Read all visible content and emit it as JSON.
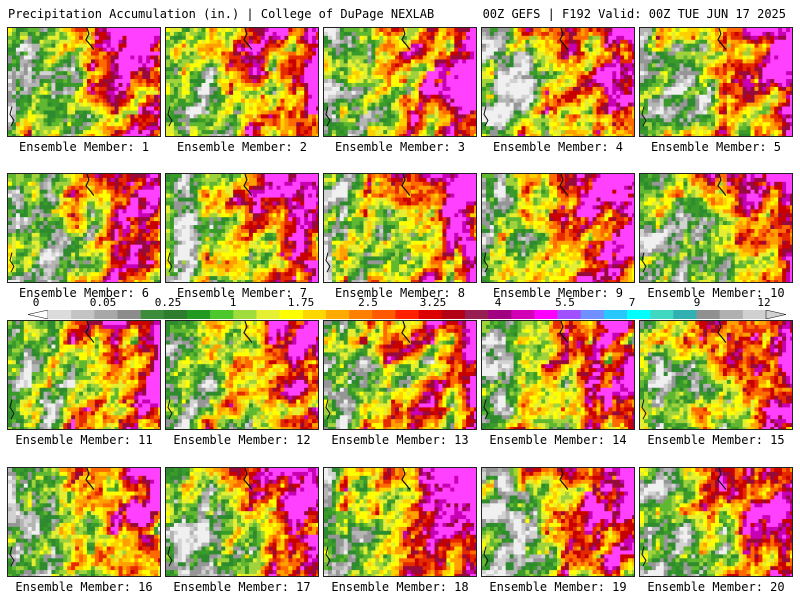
{
  "header": {
    "left": "Precipitation Accumulation (in.) | College of DuPage NEXLAB",
    "right": "00Z GEFS | F192 Valid: 00Z TUE JUN 17 2025"
  },
  "panels": [
    {
      "label": "Ensemble Member: 1"
    },
    {
      "label": "Ensemble Member: 2"
    },
    {
      "label": "Ensemble Member: 3"
    },
    {
      "label": "Ensemble Member: 4"
    },
    {
      "label": "Ensemble Member: 5"
    },
    {
      "label": "Ensemble Member: 6"
    },
    {
      "label": "Ensemble Member: 7"
    },
    {
      "label": "Ensemble Member: 8"
    },
    {
      "label": "Ensemble Member: 9"
    },
    {
      "label": "Ensemble Member: 10"
    },
    {
      "label": "Ensemble Member: 11"
    },
    {
      "label": "Ensemble Member: 12"
    },
    {
      "label": "Ensemble Member: 13"
    },
    {
      "label": "Ensemble Member: 14"
    },
    {
      "label": "Ensemble Member: 15"
    },
    {
      "label": "Ensemble Member: 16"
    },
    {
      "label": "Ensemble Member: 17"
    },
    {
      "label": "Ensemble Member: 18"
    },
    {
      "label": "Ensemble Member: 19"
    },
    {
      "label": "Ensemble Member: 20"
    }
  ],
  "legend": {
    "tick_labels": [
      "0",
      "0.05",
      "0.25",
      "1",
      "1.75",
      "2.5",
      "3.25",
      "4",
      "5.5",
      "7",
      "9",
      "12"
    ],
    "colors": [
      "#dcdcdc",
      "#c4c4c4",
      "#a8a8a8",
      "#8c8c8c",
      "#3c8c3c",
      "#2e7d2e",
      "#229a22",
      "#4cc82c",
      "#a0dc3c",
      "#e6f032",
      "#ffff00",
      "#ffd700",
      "#ffaa00",
      "#ff8000",
      "#ff5a00",
      "#ff2000",
      "#dc0000",
      "#b40014",
      "#961e50",
      "#a00080",
      "#d200b4",
      "#ff00ff",
      "#a050ff",
      "#7090ff",
      "#28c8ff",
      "#00ffff",
      "#40d8c0",
      "#30b0b0",
      "#909090",
      "#b0b0b0",
      "#d0d0d0"
    ]
  }
}
